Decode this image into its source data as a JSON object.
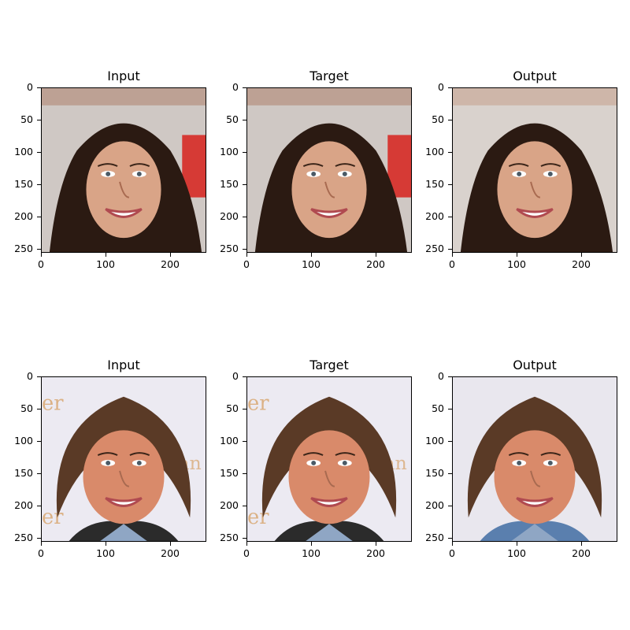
{
  "figure": {
    "panels": [
      {
        "title": "Input",
        "kind": "input-woman"
      },
      {
        "title": "Target",
        "kind": "target-woman"
      },
      {
        "title": "Output",
        "kind": "output-woman"
      },
      {
        "title": "Input",
        "kind": "input-man"
      },
      {
        "title": "Target",
        "kind": "target-man"
      },
      {
        "title": "Output",
        "kind": "output-man"
      }
    ],
    "ytick_labels": [
      "0",
      "50",
      "100",
      "150",
      "200",
      "250"
    ],
    "xtick_labels": [
      "0",
      "100",
      "200"
    ]
  }
}
